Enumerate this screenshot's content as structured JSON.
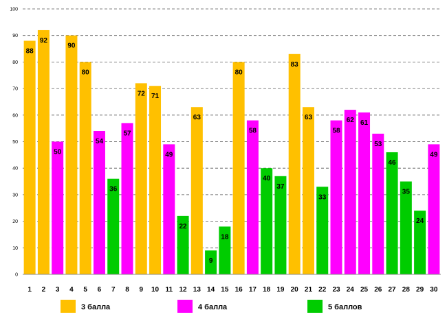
{
  "chart_data": {
    "type": "bar",
    "title": "",
    "xlabel": "",
    "ylabel": "",
    "ylim": [
      0,
      100
    ],
    "yticks": [
      "0",
      "10",
      "20",
      "30",
      "40",
      "50",
      "60",
      "70",
      "80",
      "90",
      "100"
    ],
    "grid": "horizontal-dashed",
    "categories": [
      "1",
      "2",
      "3",
      "4",
      "5",
      "6",
      "7",
      "8",
      "9",
      "10",
      "11",
      "12",
      "13",
      "14",
      "15",
      "16",
      "17",
      "18",
      "19",
      "20",
      "21",
      "22",
      "23",
      "24",
      "25",
      "26",
      "27",
      "28",
      "29",
      "30"
    ],
    "values": [
      88,
      92,
      50,
      90,
      80,
      54,
      36,
      57,
      72,
      71,
      49,
      22,
      63,
      9,
      18,
      80,
      58,
      40,
      37,
      83,
      63,
      33,
      58,
      62,
      61,
      53,
      46,
      35,
      24,
      49
    ],
    "groups": [
      3,
      3,
      4,
      3,
      3,
      4,
      5,
      4,
      3,
      3,
      4,
      5,
      3,
      5,
      5,
      3,
      4,
      5,
      5,
      3,
      3,
      5,
      4,
      4,
      4,
      4,
      5,
      5,
      5,
      4
    ],
    "legend": [
      {
        "group": 3,
        "label": "3 балла",
        "color": "#FFC000"
      },
      {
        "group": 4,
        "label": "4 балла",
        "color": "#FF00FF"
      },
      {
        "group": 5,
        "label": "5 баллов",
        "color": "#00CC00"
      }
    ],
    "legend_position": "bottom"
  }
}
